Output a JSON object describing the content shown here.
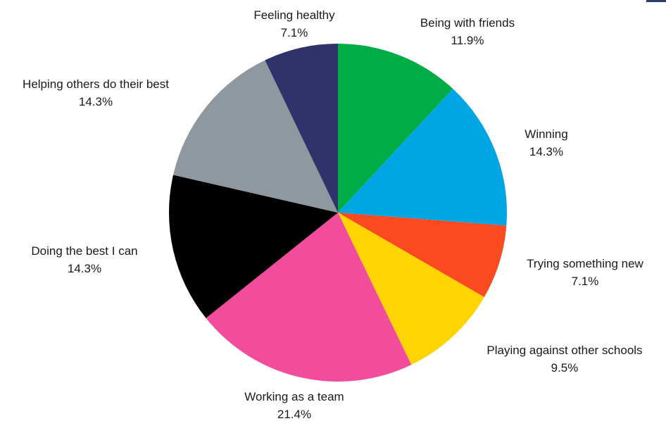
{
  "chart_data": {
    "type": "pie",
    "title": "",
    "slices": [
      {
        "label": "Being with friends",
        "percent_label": "11.9%",
        "value": 11.9,
        "color": "#00ac45"
      },
      {
        "label": "Winning",
        "percent_label": "14.3%",
        "value": 14.3,
        "color": "#00a6e4"
      },
      {
        "label": "Trying something new",
        "percent_label": "7.1%",
        "value": 7.1,
        "color": "#fb4a1f"
      },
      {
        "label": "Playing against other schools",
        "percent_label": "9.5%",
        "value": 9.5,
        "color": "#ffd400"
      },
      {
        "label": "Working as a team",
        "percent_label": "21.4%",
        "value": 21.4,
        "color": "#f24c9c"
      },
      {
        "label": "Doing the best I can",
        "percent_label": "14.3%",
        "value": 14.3,
        "color": "#000000"
      },
      {
        "label": "Helping others do their best",
        "percent_label": "14.3%",
        "value": 14.3,
        "color": "#8f989f"
      },
      {
        "label": "Feeling healthy",
        "percent_label": "7.1%",
        "value": 7.1,
        "color": "#30336b"
      }
    ]
  }
}
